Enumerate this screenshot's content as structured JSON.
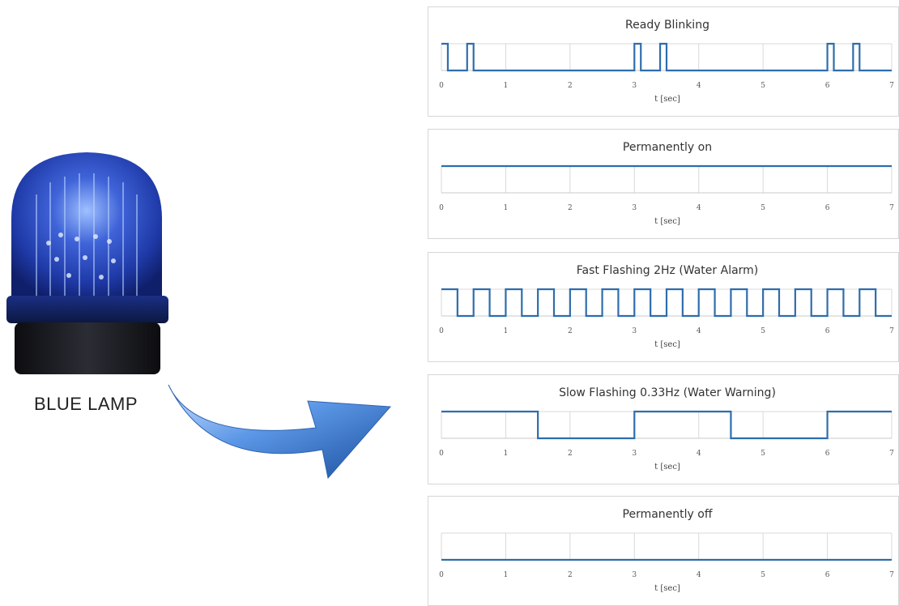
{
  "lamp": {
    "label": "BLUE LAMP",
    "icon": "blue-beacon-lamp-icon",
    "color": "#1f3fb8"
  },
  "arrow": {
    "icon": "curved-arrow-right-icon",
    "color": "#3a7bd5"
  },
  "chart_data": [
    {
      "type": "line",
      "title": "Ready Blinking",
      "xlabel": "t [sec]",
      "ylabel": "",
      "xlim": [
        0,
        7
      ],
      "ylim": [
        0,
        1
      ],
      "x_ticks": [
        "0",
        "1",
        "2",
        "3",
        "4",
        "5",
        "6",
        "7"
      ],
      "grid": true,
      "line_color": "#2e6dac",
      "steps": [
        [
          0,
          1
        ],
        [
          0.1,
          0
        ],
        [
          0.4,
          1
        ],
        [
          0.5,
          0
        ],
        [
          3,
          1
        ],
        [
          3.1,
          0
        ],
        [
          3.4,
          1
        ],
        [
          3.5,
          0
        ],
        [
          6,
          1
        ],
        [
          6.1,
          0
        ],
        [
          6.4,
          1
        ],
        [
          6.5,
          0
        ],
        [
          7,
          0
        ]
      ]
    },
    {
      "type": "line",
      "title": "Permanently on",
      "xlabel": "t [sec]",
      "ylabel": "",
      "xlim": [
        0,
        7
      ],
      "ylim": [
        0,
        1
      ],
      "x_ticks": [
        "0",
        "1",
        "2",
        "3",
        "4",
        "5",
        "6",
        "7"
      ],
      "grid": true,
      "line_color": "#2e6dac",
      "steps": [
        [
          0,
          1
        ],
        [
          7,
          1
        ]
      ]
    },
    {
      "type": "line",
      "title": "Fast Flashing 2Hz (Water Alarm)",
      "xlabel": "t [sec]",
      "ylabel": "",
      "xlim": [
        0,
        7
      ],
      "ylim": [
        0,
        1
      ],
      "x_ticks": [
        "0",
        "1",
        "2",
        "3",
        "4",
        "5",
        "6",
        "7"
      ],
      "grid": true,
      "line_color": "#2e6dac",
      "steps": [
        [
          0,
          1
        ],
        [
          0.25,
          0
        ],
        [
          0.5,
          1
        ],
        [
          0.75,
          0
        ],
        [
          1,
          1
        ],
        [
          1.25,
          0
        ],
        [
          1.5,
          1
        ],
        [
          1.75,
          0
        ],
        [
          2,
          1
        ],
        [
          2.25,
          0
        ],
        [
          2.5,
          1
        ],
        [
          2.75,
          0
        ],
        [
          3,
          1
        ],
        [
          3.25,
          0
        ],
        [
          3.5,
          1
        ],
        [
          3.75,
          0
        ],
        [
          4,
          1
        ],
        [
          4.25,
          0
        ],
        [
          4.5,
          1
        ],
        [
          4.75,
          0
        ],
        [
          5,
          1
        ],
        [
          5.25,
          0
        ],
        [
          5.5,
          1
        ],
        [
          5.75,
          0
        ],
        [
          6,
          1
        ],
        [
          6.25,
          0
        ],
        [
          6.5,
          1
        ],
        [
          6.75,
          0
        ],
        [
          7,
          0
        ]
      ]
    },
    {
      "type": "line",
      "title": "Slow Flashing 0.33Hz (Water Warning)",
      "xlabel": "t [sec]",
      "ylabel": "",
      "xlim": [
        0,
        7
      ],
      "ylim": [
        0,
        1
      ],
      "x_ticks": [
        "0",
        "1",
        "2",
        "3",
        "4",
        "5",
        "6",
        "7"
      ],
      "grid": true,
      "line_color": "#2e6dac",
      "steps": [
        [
          0,
          1
        ],
        [
          1.5,
          0
        ],
        [
          3,
          1
        ],
        [
          4.5,
          0
        ],
        [
          6,
          1
        ],
        [
          7,
          1
        ]
      ]
    },
    {
      "type": "line",
      "title": "Permanently off",
      "xlabel": "t [sec]",
      "ylabel": "",
      "xlim": [
        0,
        7
      ],
      "ylim": [
        0,
        1
      ],
      "x_ticks": [
        "0",
        "1",
        "2",
        "3",
        "4",
        "5",
        "6",
        "7"
      ],
      "grid": true,
      "line_color": "#2e6dac",
      "steps": [
        [
          0,
          0
        ],
        [
          7,
          0
        ]
      ]
    }
  ]
}
